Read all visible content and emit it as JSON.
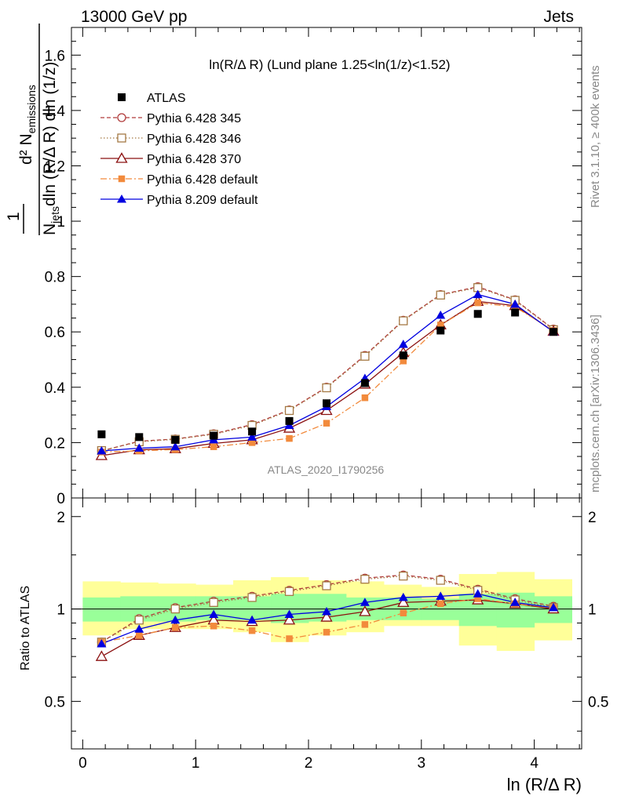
{
  "header": {
    "left": "13000 GeV pp",
    "right": "Jets"
  },
  "side_text": {
    "rivet": "Rivet 3.1.10, ≥ 400k events",
    "mcplots": "mcplots.cern.ch [arXiv:1306.3436]"
  },
  "watermark": "ATLAS_2020_I1790256",
  "chart_data": [
    {
      "type": "line",
      "title": "ln(R/Δ R) (Lund plane 1.25<ln(1/z)<1.52)",
      "ylabel": "1/N_jets d²N_emissions / dln(R/Δ R) dln(1/z)",
      "ylabel_parts": {
        "frac1": "1",
        "top": "d² N",
        "top_sub": "emissions",
        "bot_a": "N",
        "bot_sub": "jets",
        "bot_b": "dln (R/Δ R) dln (1/z)"
      },
      "xlim": [
        -0.1,
        4.42
      ],
      "ylim": [
        0,
        1.7
      ],
      "yticks": [
        0,
        0.2,
        0.4,
        0.6,
        0.8,
        1,
        1.2,
        1.4,
        1.6
      ],
      "x": [
        0.167,
        0.5,
        0.82,
        1.16,
        1.5,
        1.83,
        2.16,
        2.5,
        2.84,
        3.17,
        3.5,
        3.83,
        4.17
      ],
      "atlas": {
        "name": "ATLAS",
        "values": [
          0.23,
          0.22,
          0.21,
          0.225,
          0.24,
          0.278,
          0.342,
          0.415,
          0.515,
          0.605,
          0.665,
          0.67,
          0.6
        ]
      },
      "series": [
        {
          "name": "Pythia 6.428 345",
          "color": "#b03a3a",
          "marker": "open-circle",
          "dash": "5,3",
          "values": [
            0.17,
            0.205,
            0.213,
            0.232,
            0.265,
            0.318,
            0.4,
            0.515,
            0.642,
            0.735,
            0.763,
            0.716,
            0.61
          ]
        },
        {
          "name": "Pythia 6.428 346",
          "color": "#a57a45",
          "marker": "open-square",
          "dash": "1.5,2.5",
          "values": [
            0.171,
            0.203,
            0.212,
            0.23,
            0.262,
            0.316,
            0.398,
            0.512,
            0.64,
            0.733,
            0.76,
            0.714,
            0.608
          ]
        },
        {
          "name": "Pythia 6.428 370",
          "color": "#8b1010",
          "marker": "open-triangle",
          "dash": "",
          "values": [
            0.153,
            0.174,
            0.178,
            0.197,
            0.21,
            0.252,
            0.316,
            0.411,
            0.525,
            0.625,
            0.71,
            0.695,
            0.602
          ]
        },
        {
          "name": "Pythia 6.428 default",
          "color": "#f28a3c",
          "marker": "filled-square",
          "dash": "8,3,2,3",
          "values": [
            0.166,
            0.17,
            0.175,
            0.185,
            0.2,
            0.215,
            0.27,
            0.362,
            0.495,
            0.625,
            0.705,
            0.69,
            0.605
          ]
        },
        {
          "name": "Pythia 8.209 default",
          "color": "#0000e0",
          "marker": "filled-triangle",
          "dash": "",
          "values": [
            0.17,
            0.18,
            0.185,
            0.21,
            0.22,
            0.262,
            0.33,
            0.432,
            0.555,
            0.66,
            0.735,
            0.7,
            0.6
          ]
        }
      ],
      "legend_placement": "top-left"
    },
    {
      "type": "line",
      "ylabel": "Ratio to ATLAS",
      "xlabel": "ln (R/Δ R)",
      "xlim": [
        -0.1,
        4.42
      ],
      "ylim": [
        0.35,
        2.3
      ],
      "yscale": "log",
      "yticks": [
        0.5,
        1,
        2
      ],
      "xticks": [
        0,
        1,
        2,
        3,
        4
      ],
      "bins": [
        0.0,
        0.333,
        0.667,
        1.0,
        1.333,
        1.667,
        2.0,
        2.333,
        2.667,
        3.0,
        3.333,
        3.667,
        4.0,
        4.333
      ],
      "band_inner": {
        "lo": [
          0.91,
          0.91,
          0.91,
          0.92,
          0.92,
          0.9,
          0.91,
          0.92,
          0.92,
          0.92,
          0.88,
          0.87,
          0.9
        ],
        "hi": [
          1.09,
          1.1,
          1.1,
          1.1,
          1.1,
          1.12,
          1.12,
          1.09,
          1.09,
          1.08,
          1.12,
          1.13,
          1.1
        ]
      },
      "band_outer": {
        "lo": [
          0.82,
          0.86,
          0.86,
          0.86,
          0.84,
          0.78,
          0.82,
          0.84,
          0.88,
          0.88,
          0.76,
          0.73,
          0.79
        ],
        "hi": [
          1.23,
          1.22,
          1.21,
          1.2,
          1.24,
          1.27,
          1.24,
          1.23,
          1.2,
          1.18,
          1.3,
          1.32,
          1.25
        ]
      },
      "series_ratios": [
        [
          0.78,
          0.93,
          1.01,
          1.06,
          1.1,
          1.15,
          1.2,
          1.26,
          1.29,
          1.25,
          1.16,
          1.08,
          1.02
        ],
        [
          0.78,
          0.92,
          1.0,
          1.05,
          1.09,
          1.14,
          1.19,
          1.25,
          1.28,
          1.24,
          1.15,
          1.07,
          1.01
        ],
        [
          0.7,
          0.82,
          0.87,
          0.92,
          0.91,
          0.92,
          0.94,
          0.98,
          1.05,
          1.06,
          1.07,
          1.04,
          1.0
        ],
        [
          0.78,
          0.82,
          0.87,
          0.88,
          0.85,
          0.8,
          0.84,
          0.89,
          0.97,
          1.04,
          1.08,
          1.04,
          1.01
        ],
        [
          0.77,
          0.86,
          0.92,
          0.96,
          0.92,
          0.96,
          0.98,
          1.05,
          1.09,
          1.1,
          1.12,
          1.05,
          1.01
        ]
      ]
    }
  ]
}
